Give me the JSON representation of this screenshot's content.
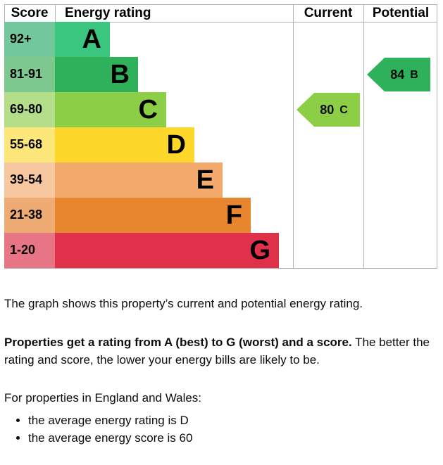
{
  "graph": {
    "headers": {
      "score": "Score",
      "rating": "Energy rating",
      "current": "Current",
      "potential": "Potential"
    },
    "bands": [
      {
        "score": "92+",
        "letter": "A",
        "color": "#3ac67f",
        "score_color": "#73c79c"
      },
      {
        "score": "81-91",
        "letter": "B",
        "color": "#2fb15c",
        "score_color": "#7cc88f"
      },
      {
        "score": "69-80",
        "letter": "C",
        "color": "#8dce47",
        "score_color": "#b5de8b"
      },
      {
        "score": "55-68",
        "letter": "D",
        "color": "#fdd82b",
        "score_color": "#fde67a"
      },
      {
        "score": "39-54",
        "letter": "E",
        "color": "#f4aa6d",
        "score_color": "#f7c79f"
      },
      {
        "score": "21-38",
        "letter": "F",
        "color": "#e8852f",
        "score_color": "#eeab73"
      },
      {
        "score": "1-20",
        "letter": "G",
        "color": "#e0314a",
        "score_color": "#e87585"
      }
    ],
    "current": {
      "score": 80,
      "letter": "C"
    },
    "potential": {
      "score": 84,
      "letter": "B"
    }
  },
  "text": {
    "intro": "The graph shows this property’s current and potential energy rating.",
    "bold": "Properties get a rating from A (best) to G (worst) and a score.",
    "rest": " The better the rating and score, the lower your energy bills are likely to be.",
    "region": "For properties in England and Wales:",
    "bullets": [
      "the average energy rating is D",
      "the average energy score is 60"
    ]
  }
}
